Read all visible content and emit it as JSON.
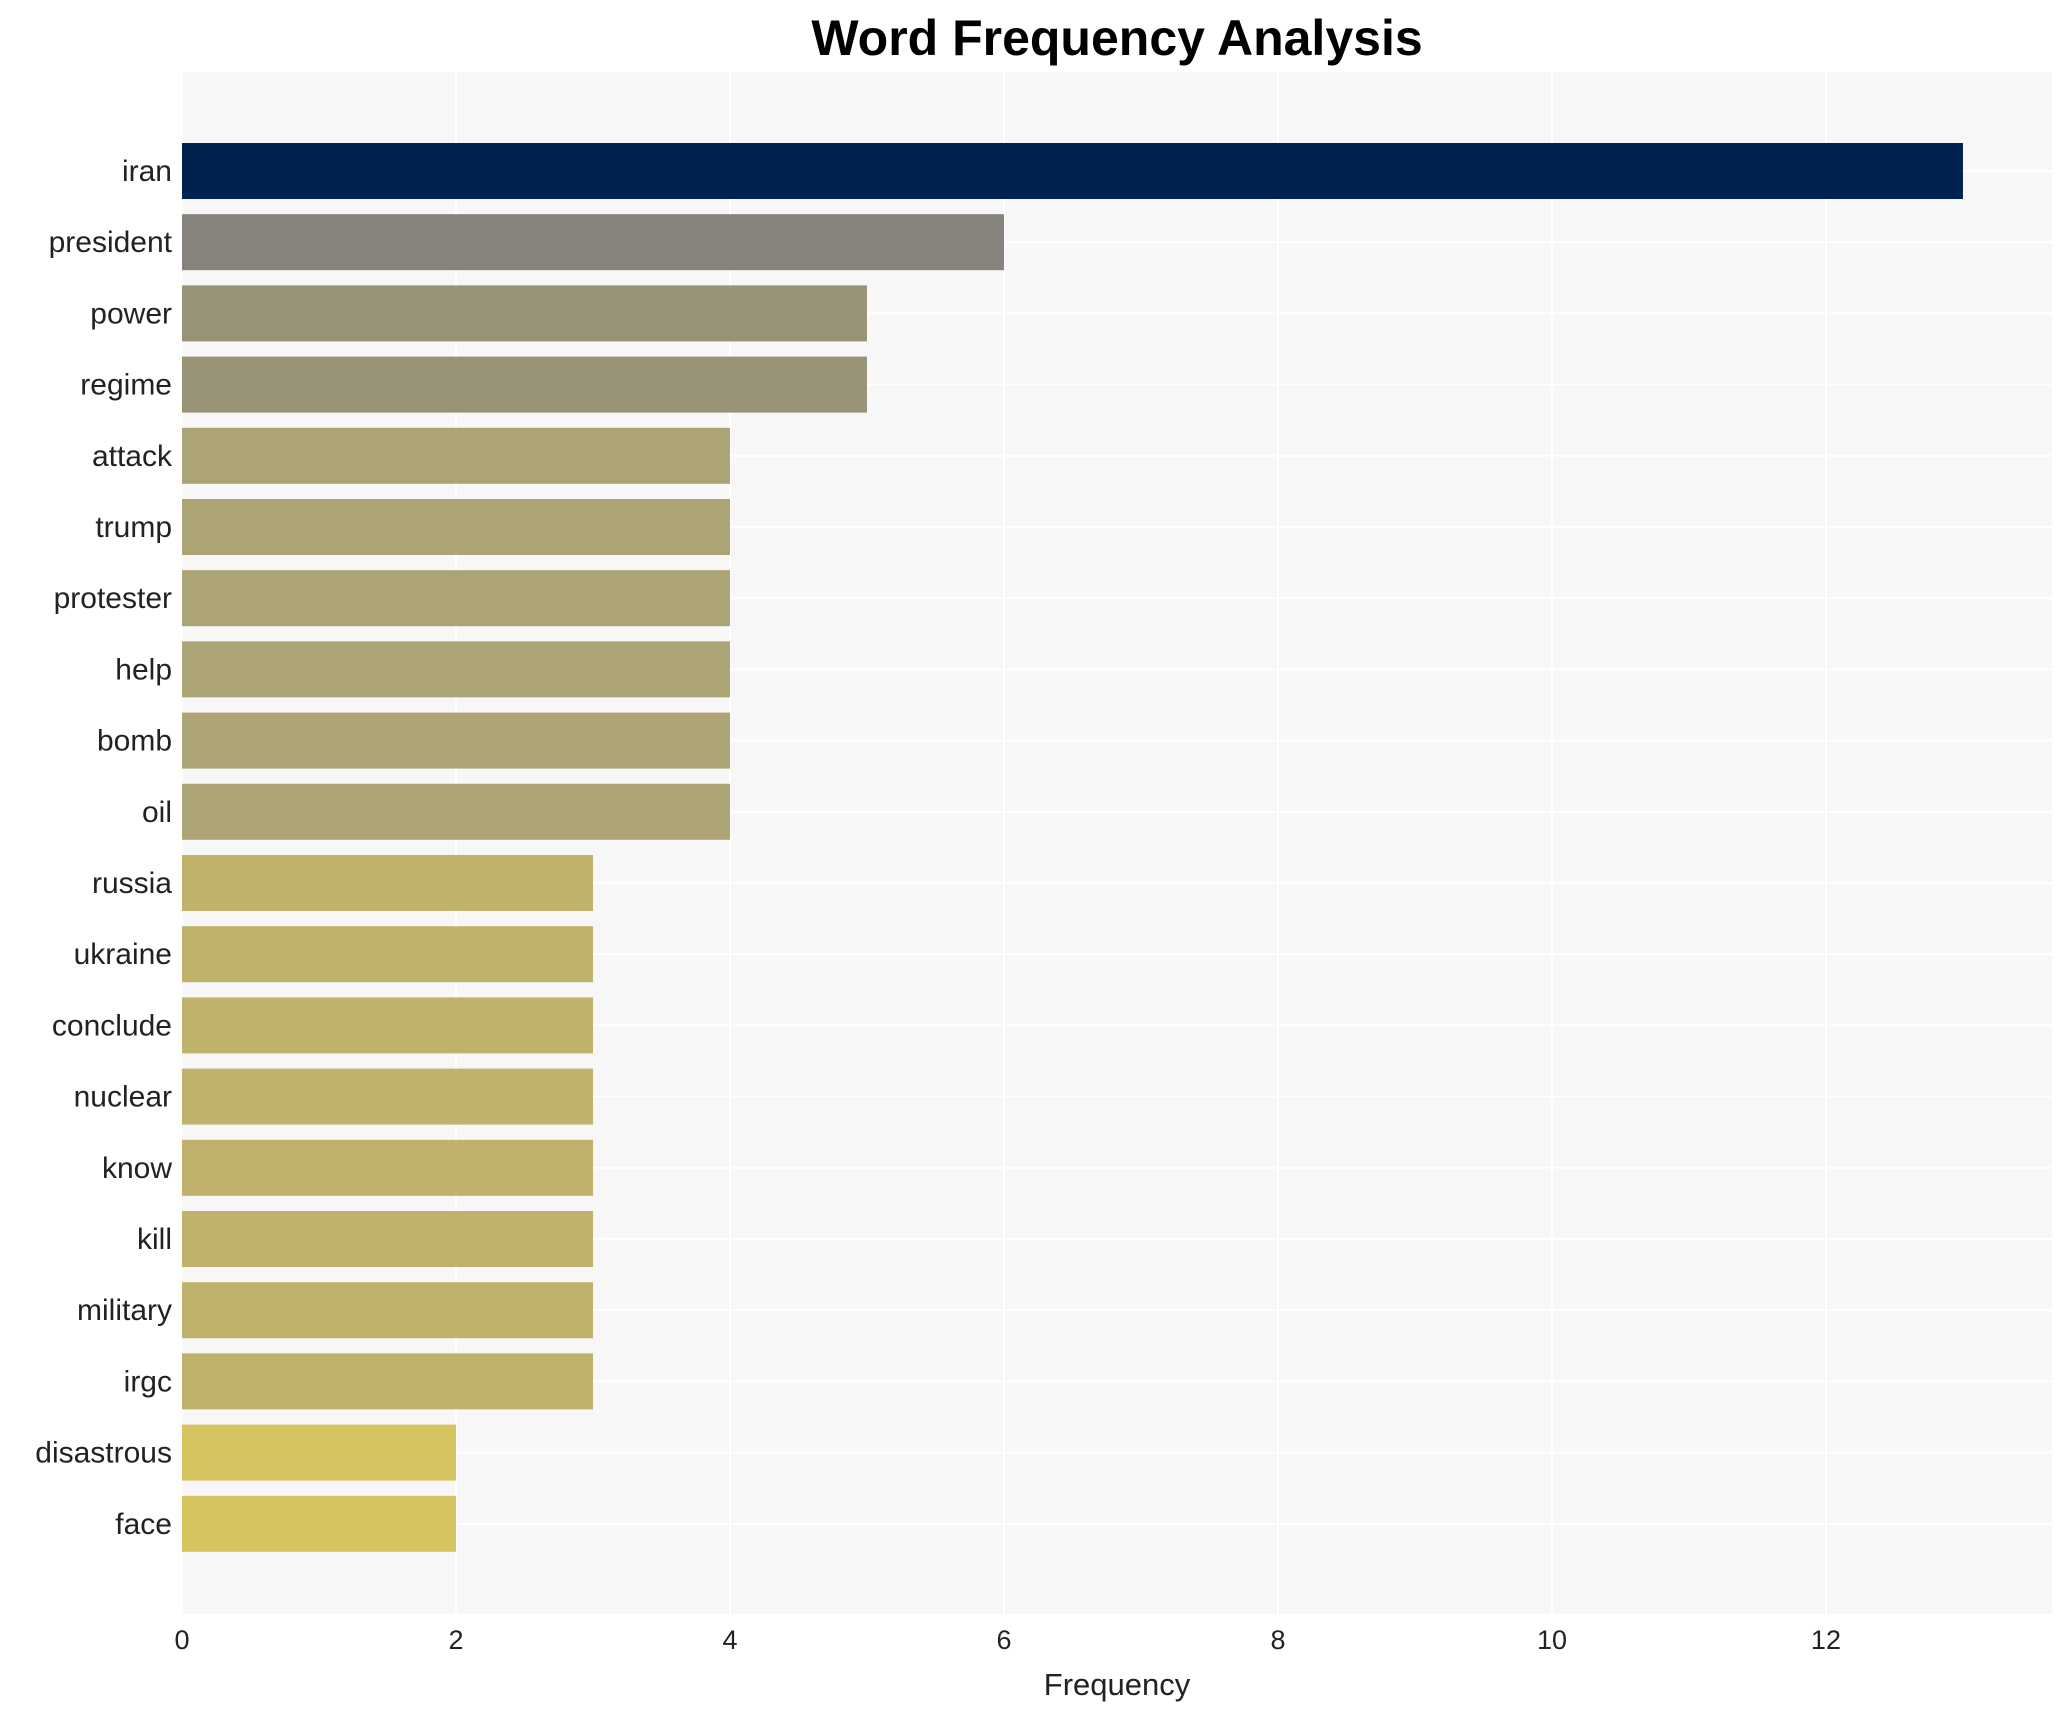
{
  "chart_data": {
    "type": "bar",
    "orientation": "horizontal",
    "title": "Word Frequency Analysis",
    "xlabel": "Frequency",
    "ylabel": "",
    "xlim": [
      0,
      13.65
    ],
    "xticks": [
      0,
      2,
      4,
      6,
      8,
      10,
      12
    ],
    "grid": true,
    "legend": "none",
    "categories": [
      "iran",
      "president",
      "power",
      "regime",
      "attack",
      "trump",
      "protester",
      "help",
      "bomb",
      "oil",
      "russia",
      "ukraine",
      "conclude",
      "nuclear",
      "know",
      "kill",
      "military",
      "irgc",
      "disastrous",
      "face"
    ],
    "values": [
      13,
      6,
      5,
      5,
      4,
      4,
      4,
      4,
      4,
      4,
      3,
      3,
      3,
      3,
      3,
      3,
      3,
      3,
      2,
      2
    ],
    "colors": [
      "#00224e",
      "#85837b",
      "#989377",
      "#989377",
      "#aca474",
      "#aca474",
      "#aca474",
      "#aca474",
      "#aca474",
      "#aca474",
      "#c0b26a",
      "#c0b26a",
      "#c0b26a",
      "#c0b26a",
      "#c0b26a",
      "#c0b26a",
      "#c0b26a",
      "#c0b26a",
      "#d6c461",
      "#d6c461"
    ],
    "plot_background": "#f7f7f7",
    "grid_color": "#ffffff"
  }
}
